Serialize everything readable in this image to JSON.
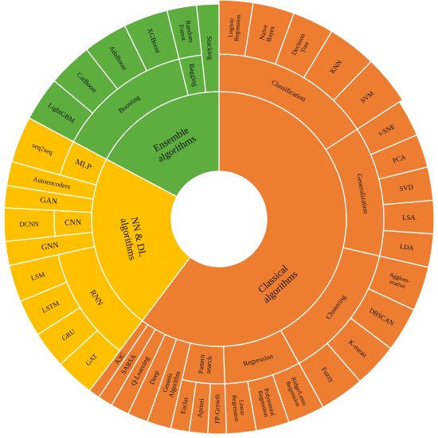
{
  "chart_data": {
    "type": "sunburst",
    "title": "",
    "colors": {
      "classical": "#ED7D31",
      "ensemble": "#5DAD3F",
      "nndl": "#FFC000"
    },
    "categories": [
      {
        "label": "Classical algorithms",
        "color": "#ED7D31",
        "children": [
          {
            "label": "Classification",
            "children": [
              "Logistic Regression",
              "Naive Bayes",
              "Decision Tree",
              "KNN",
              "SVM"
            ]
          },
          {
            "label": "Generalization",
            "children": [
              "t-SNE",
              "PCA",
              "SVD",
              "LSA",
              "LDA"
            ]
          },
          {
            "label": "Clustering",
            "children": [
              "Agglom-erative",
              "DBSCAN",
              "K-mean",
              "Fuzzy"
            ]
          },
          {
            "label": "Regression",
            "children": [
              "Ridge/Lasso Regression",
              "Polynomial Regression",
              "Linear Regression"
            ]
          },
          {
            "label": "Pattern search",
            "children": [
              "FP-Growth",
              "Apriori",
              "Euclat"
            ]
          },
          {
            "label": "Genetic Algorithm",
            "children": []
          },
          {
            "label": "Deep",
            "children": []
          },
          {
            "label": "Q-Learning",
            "children": []
          },
          {
            "label": "SARSA",
            "children": []
          },
          {
            "label": "A3C",
            "children": []
          }
        ]
      },
      {
        "label": "NN & DL algorithms",
        "color": "#FFC000",
        "children": [
          {
            "label": "RNN",
            "children": [
              "GAT",
              "GRU",
              "LSTM",
              "LSM"
            ]
          },
          {
            "label": "GNN",
            "children": []
          },
          {
            "label": "CNN",
            "children": [
              "DCNN"
            ]
          },
          {
            "label": "GAN",
            "children": []
          },
          {
            "label": "Autoencoders",
            "children": []
          },
          {
            "label": "MLP",
            "children": [
              "seq2seq"
            ]
          }
        ]
      },
      {
        "label": "Ensemble algorithms",
        "color": "#5DAD3F",
        "children": [
          {
            "label": "Boosting",
            "children": [
              "LightGBM",
              "CatBoost",
              "AdaBoost",
              "XGBoost"
            ]
          },
          {
            "label": "Bagging",
            "children": [
              "Random Forest"
            ]
          },
          {
            "label": "Stacking",
            "children": []
          }
        ]
      }
    ]
  }
}
